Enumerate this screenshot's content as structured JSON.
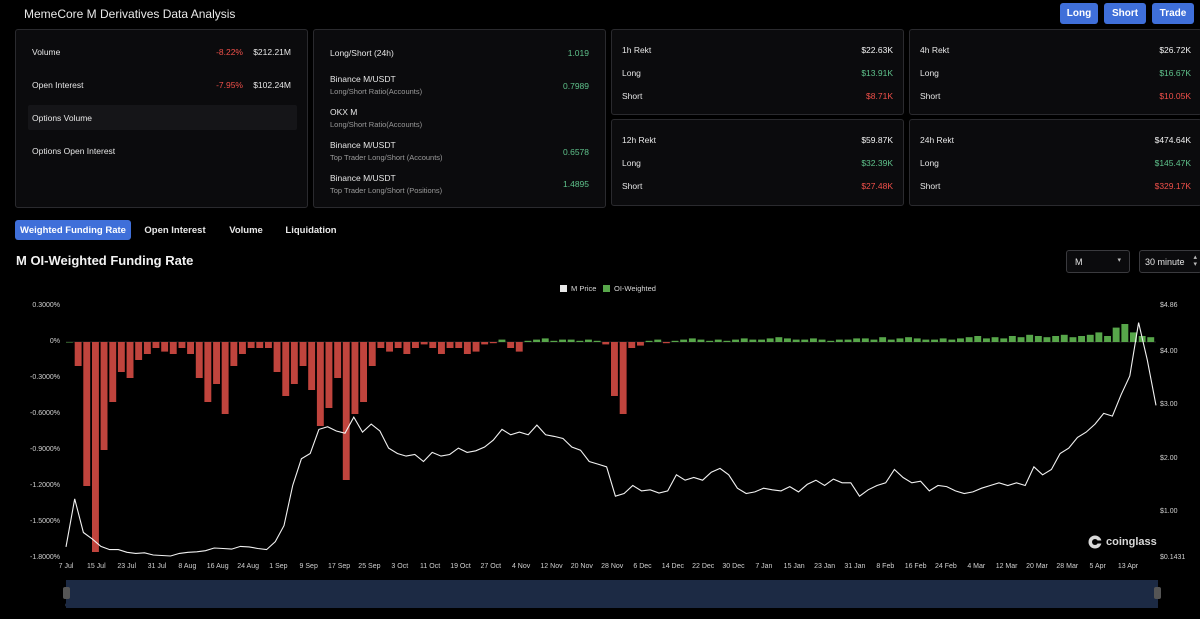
{
  "header": {
    "title": "MemeCore M Derivatives Data Analysis",
    "buttons": [
      "Long",
      "Short",
      "Trade"
    ]
  },
  "stats": {
    "volume": {
      "label": "Volume",
      "change": "-8.22%",
      "value": "$212.21M"
    },
    "open_interest": {
      "label": "Open Interest",
      "change": "-7.95%",
      "value": "$102.24M"
    },
    "options_volume": {
      "label": "Options Volume"
    },
    "options_open_interest": {
      "label": "Options Open Interest"
    }
  },
  "ratios": [
    {
      "title": "Long/Short (24h)",
      "subtitle": "",
      "value": "1.019"
    },
    {
      "title": "Binance M/USDT",
      "subtitle": "Long/Short Ratio(Accounts)",
      "value": "0.7989"
    },
    {
      "title": "OKX M",
      "subtitle": "Long/Short Ratio(Accounts)",
      "value": ""
    },
    {
      "title": "Binance M/USDT",
      "subtitle": "Top Trader Long/Short (Accounts)",
      "value": "0.6578"
    },
    {
      "title": "Binance M/USDT",
      "subtitle": "Top Trader Long/Short (Positions)",
      "value": "1.4895"
    }
  ],
  "rekt": [
    {
      "title": "1h Rekt",
      "total": "$22.63K",
      "long_label": "Long",
      "long": "$13.91K",
      "short_label": "Short",
      "short": "$8.71K"
    },
    {
      "title": "4h Rekt",
      "total": "$26.72K",
      "long_label": "Long",
      "long": "$16.67K",
      "short_label": "Short",
      "short": "$10.05K"
    },
    {
      "title": "12h Rekt",
      "total": "$59.87K",
      "long_label": "Long",
      "long": "$32.39K",
      "short_label": "Short",
      "short": "$27.48K"
    },
    {
      "title": "24h Rekt",
      "total": "$474.64K",
      "long_label": "Long",
      "long": "$145.47K",
      "short_label": "Short",
      "short": "$329.17K"
    }
  ],
  "tabs": [
    "Weighted Funding Rate",
    "Open Interest",
    "Volume",
    "Liquidation"
  ],
  "chart_title": "M OI-Weighted Funding Rate",
  "selectors": {
    "symbol": "M",
    "interval": "30 minute"
  },
  "watermark": "coinglass",
  "colors": {
    "accent": "#3f6fd9",
    "positive": "#5fc28b",
    "negative": "#f0504a",
    "funding_pos": "#57a64a",
    "funding_neg": "#c0443d"
  },
  "chart_data": {
    "type": "bar+line",
    "legend": [
      "M Price",
      "OI-Weighted"
    ],
    "legend_placement": "top-center",
    "x_labels": [
      "7 Jul",
      "15 Jul",
      "23 Jul",
      "31 Jul",
      "8 Aug",
      "16 Aug",
      "24 Aug",
      "1 Sep",
      "9 Sep",
      "17 Sep",
      "25 Sep",
      "3 Oct",
      "11 Oct",
      "19 Oct",
      "27 Oct",
      "4 Nov",
      "12 Nov",
      "20 Nov",
      "28 Nov",
      "6 Dec",
      "14 Dec",
      "22 Dec",
      "30 Dec",
      "7 Jan",
      "15 Jan",
      "23 Jan",
      "31 Jan",
      "8 Feb",
      "16 Feb",
      "24 Feb",
      "4 Mar",
      "12 Mar",
      "20 Mar",
      "28 Mar",
      "5 Apr",
      "13 Apr"
    ],
    "y_left_labels": [
      "0.3000%",
      "0%",
      "-0.3000%",
      "-0.6000%",
      "-0.9000%",
      "-1.2000%",
      "-1.5000%",
      "-1.8000%"
    ],
    "y_left_range": [
      -1.8,
      0.3
    ],
    "y_right_labels": [
      "$4.86",
      "$4.00",
      "$3.00",
      "$2.00",
      "$1.00",
      "$0.1431"
    ],
    "y_right_range": [
      0.1431,
      4.86
    ],
    "price": [
      0.35,
      1.25,
      0.62,
      0.5,
      0.36,
      0.3,
      0.3,
      0.25,
      0.23,
      0.24,
      0.2,
      0.19,
      0.18,
      0.23,
      0.25,
      0.26,
      0.28,
      0.33,
      0.32,
      0.31,
      0.36,
      0.35,
      0.32,
      0.3,
      0.45,
      0.75,
      1.5,
      2.0,
      2.1,
      2.55,
      2.6,
      2.52,
      2.48,
      2.78,
      2.5,
      2.65,
      2.52,
      2.2,
      2.1,
      2.05,
      2.08,
      1.95,
      2.12,
      2.05,
      2.08,
      2.2,
      2.12,
      2.15,
      2.22,
      2.35,
      2.55,
      2.45,
      2.5,
      2.45,
      2.63,
      2.45,
      2.42,
      2.38,
      2.22,
      2.16,
      1.95,
      1.9,
      1.85,
      1.3,
      1.35,
      1.5,
      1.4,
      1.42,
      1.36,
      1.4,
      1.7,
      1.6,
      1.65,
      1.6,
      1.75,
      1.82,
      1.7,
      1.45,
      1.35,
      1.38,
      1.45,
      1.42,
      1.4,
      1.48,
      1.38,
      1.52,
      1.6,
      1.5,
      1.62,
      1.55,
      1.55,
      1.3,
      1.42,
      1.5,
      1.55,
      1.8,
      1.65,
      1.55,
      1.58,
      1.4,
      1.5,
      1.48,
      1.4,
      1.35,
      1.38,
      1.45,
      1.5,
      1.55,
      1.5,
      1.55,
      1.5,
      1.85,
      1.7,
      1.8,
      2.1,
      2.2,
      2.4,
      2.5,
      2.65,
      2.85,
      2.8,
      3.2,
      3.55,
      4.55,
      3.85,
      3.0
    ],
    "funding": [
      0.0,
      -0.2,
      -1.2,
      -1.75,
      -0.9,
      -0.5,
      -0.25,
      -0.3,
      -0.15,
      -0.1,
      -0.05,
      -0.08,
      -0.1,
      -0.05,
      -0.1,
      -0.3,
      -0.5,
      -0.35,
      -0.6,
      -0.2,
      -0.1,
      -0.05,
      -0.05,
      -0.05,
      -0.25,
      -0.45,
      -0.35,
      -0.2,
      -0.4,
      -0.7,
      -0.55,
      -0.3,
      -1.15,
      -0.6,
      -0.5,
      -0.2,
      -0.05,
      -0.08,
      -0.05,
      -0.1,
      -0.05,
      -0.02,
      -0.05,
      -0.1,
      -0.05,
      -0.05,
      -0.1,
      -0.08,
      -0.02,
      -0.01,
      0.02,
      -0.05,
      -0.08,
      0.01,
      0.02,
      0.03,
      0.01,
      0.02,
      0.02,
      0.01,
      0.02,
      0.01,
      -0.02,
      -0.45,
      -0.6,
      -0.05,
      -0.03,
      0.01,
      0.02,
      -0.01,
      0.01,
      0.02,
      0.03,
      0.02,
      0.01,
      0.02,
      0.01,
      0.02,
      0.03,
      0.02,
      0.02,
      0.03,
      0.04,
      0.03,
      0.02,
      0.02,
      0.03,
      0.02,
      0.01,
      0.02,
      0.02,
      0.03,
      0.03,
      0.02,
      0.04,
      0.02,
      0.03,
      0.04,
      0.03,
      0.02,
      0.02,
      0.03,
      0.02,
      0.03,
      0.04,
      0.05,
      0.03,
      0.04,
      0.03,
      0.05,
      0.04,
      0.06,
      0.05,
      0.04,
      0.05,
      0.06,
      0.04,
      0.05,
      0.06,
      0.08,
      0.05,
      0.12,
      0.15,
      0.08,
      0.05,
      0.04
    ]
  }
}
